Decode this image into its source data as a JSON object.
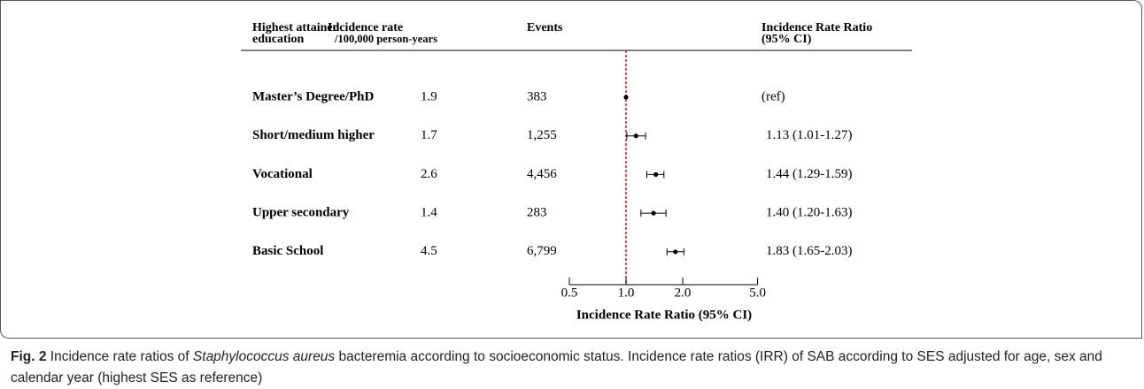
{
  "table": {
    "header": [
      [
        "Highest attained",
        "education"
      ],
      [
        "Incidence rate",
        "/100,000 person-years"
      ],
      [
        "Events"
      ],
      [
        "Incidence Rate Ratio",
        "(95% CI)"
      ]
    ],
    "incidence": [
      "1.9",
      "1.7",
      "2.6",
      "1.4",
      "4.5"
    ],
    "events": [
      "383",
      "1,255",
      "4,456",
      "283",
      "6,799"
    ]
  },
  "chart_data": {
    "type": "forest",
    "categories": [
      "Master’s Degree/PhD",
      "Short/medium higher",
      "Vocational",
      "Upper secondary",
      "Basic School"
    ],
    "values": [
      1,
      1.13,
      1.44,
      1.4,
      1.83
    ],
    "value_labels": [
      "(ref)",
      "1.13 (1.01-1.27)",
      "1.44 (1.29-1.59)",
      "1.40 (1.20-1.63)",
      "1.83 (1.65-2.03)"
    ],
    "lower": [
      null,
      1.01,
      1.29,
      1.2,
      1.65
    ],
    "upper": [
      null,
      1.27,
      1.59,
      1.63,
      2.03
    ],
    "x_label": "Incidence Rate Ratio (95% CI)",
    "xlim": [
      0.5,
      5
    ],
    "xticks": [
      0.5,
      {
        "value": 1,
        "label": "1.0"
      },
      {
        "value": 2,
        "label": "2.0"
      },
      {
        "value": 5,
        "label": "5.0"
      }
    ],
    "log_x": true,
    "reference": {
      "value": 1,
      "color": "#b22222"
    },
    "color": "#000000"
  },
  "caption": {
    "label": "Fig. 2",
    "parts": [
      "Incidence rate ratios of ",
      "Staphylococcus aureus",
      " bacteremia according to socioeconomic status. Incidence rate ratios (IRR) of SAB according to SES adjusted for age, sex and calendar year (highest SES as reference)"
    ]
  }
}
